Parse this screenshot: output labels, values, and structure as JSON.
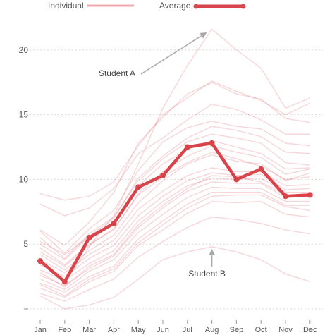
{
  "chart_data": {
    "type": "line",
    "title": "",
    "xlabel": "",
    "ylabel": "",
    "categories": [
      "Jan",
      "Feb",
      "Mar",
      "Apr",
      "May",
      "Jun",
      "Jul",
      "Aug",
      "Sep",
      "Oct",
      "Nov",
      "Dec"
    ],
    "ylim": [
      0,
      22
    ],
    "yticks": [
      {
        "value": 5,
        "label": "5"
      },
      {
        "value": 10,
        "label": "10"
      },
      {
        "value": 15,
        "label": "15"
      },
      {
        "value": 20,
        "label": "20"
      }
    ],
    "grid": "horizontal dotted",
    "legend": {
      "placement": "top",
      "entries": [
        {
          "label": "Individual",
          "color": "#f0a8ae"
        },
        {
          "label": "Average",
          "color": "#d9444b"
        }
      ]
    },
    "colors": {
      "individual": "#e06a75",
      "average": "#d9444b",
      "annotation": "#a8a8a8",
      "grid": "#d6d6d6"
    },
    "average": [
      3.7,
      2.1,
      5.5,
      6.6,
      9.4,
      10.3,
      12.5,
      12.8,
      10.0,
      10.8,
      8.7,
      8.8
    ],
    "individuals": [
      [
        3.8,
        2.0,
        4.8,
        7.2,
        11.2,
        15.5,
        18.8,
        21.6,
        20.0,
        18.6,
        15.5,
        16.3
      ],
      [
        8.9,
        8.4,
        8.7,
        9.8,
        12.6,
        15.0,
        16.3,
        17.6,
        16.8,
        16.1,
        15.0,
        15.9
      ],
      [
        6.1,
        4.9,
        6.7,
        9.0,
        12.8,
        14.8,
        16.6,
        17.5,
        16.6,
        16.2,
        14.7,
        14.4
      ],
      [
        8.1,
        7.2,
        7.8,
        9.3,
        12.0,
        13.2,
        14.6,
        15.8,
        15.4,
        14.6,
        13.5,
        13.5
      ],
      [
        6.0,
        4.3,
        6.2,
        7.6,
        10.7,
        12.9,
        14.0,
        14.5,
        14.1,
        13.9,
        12.8,
        12.6
      ],
      [
        5.5,
        3.9,
        5.8,
        7.1,
        9.9,
        11.6,
        12.9,
        13.5,
        13.2,
        12.8,
        11.3,
        11.1
      ],
      [
        4.7,
        3.4,
        5.0,
        6.1,
        8.9,
        10.6,
        11.8,
        12.6,
        12.1,
        11.7,
        10.4,
        10.8
      ],
      [
        4.2,
        3.0,
        4.5,
        5.7,
        8.2,
        9.9,
        11.2,
        11.9,
        11.4,
        11.2,
        9.9,
        10.5
      ],
      [
        3.8,
        2.8,
        4.2,
        5.3,
        7.7,
        9.1,
        10.3,
        10.9,
        10.6,
        10.6,
        9.5,
        9.6
      ],
      [
        3.4,
        2.5,
        3.9,
        4.9,
        7.2,
        8.7,
        9.9,
        10.5,
        10.3,
        10.4,
        9.2,
        9.3
      ],
      [
        3.0,
        2.2,
        3.5,
        4.5,
        6.8,
        8.3,
        9.5,
        10.1,
        10.0,
        10.1,
        9.0,
        9.0
      ],
      [
        2.6,
        1.8,
        3.1,
        4.1,
        6.3,
        7.8,
        9.1,
        9.8,
        9.7,
        9.7,
        8.6,
        8.7
      ],
      [
        2.3,
        1.5,
        2.9,
        3.8,
        5.9,
        7.3,
        8.6,
        9.4,
        9.3,
        9.3,
        8.3,
        8.3
      ],
      [
        2.0,
        1.3,
        2.5,
        3.3,
        5.4,
        6.8,
        8.1,
        9.0,
        9.0,
        9.0,
        8.0,
        8.0
      ],
      [
        1.6,
        0.9,
        2.1,
        2.9,
        4.9,
        6.1,
        7.4,
        8.3,
        8.2,
        8.3,
        7.3,
        7.1
      ],
      [
        1.2,
        0.6,
        1.5,
        2.3,
        4.0,
        5.2,
        6.3,
        7.1,
        6.9,
        6.6,
        6.1,
        5.8
      ],
      [
        1.0,
        0.0,
        0.3,
        0.9,
        2.3,
        3.8,
        4.4,
        4.8,
        4.4,
        3.8,
        2.7,
        2.1
      ],
      [
        5.0,
        3.8,
        5.6,
        6.6,
        9.5,
        11.2,
        12.3,
        13.0,
        12.5,
        12.0,
        10.8,
        10.9
      ],
      [
        4.4,
        3.3,
        4.9,
        6.2,
        8.8,
        10.2,
        11.3,
        12.1,
        11.6,
        11.0,
        10.0,
        10.2
      ],
      [
        2.8,
        1.7,
        3.3,
        4.2,
        6.5,
        8.0,
        9.3,
        10.3,
        10.2,
        9.8,
        8.8,
        8.6
      ],
      [
        1.9,
        1.0,
        2.3,
        3.1,
        5.1,
        6.5,
        7.8,
        8.7,
        8.8,
        8.8,
        7.9,
        7.6
      ],
      [
        5.2,
        4.2,
        5.6,
        7.0,
        10.1,
        11.8,
        13.2,
        14.1,
        13.8,
        13.3,
        12.1,
        12.0
      ]
    ],
    "annotations": [
      {
        "text": "Student A",
        "x": "Aug",
        "y": 21.6
      },
      {
        "text": "Student B",
        "x": "Aug",
        "y": 4.8
      }
    ]
  }
}
